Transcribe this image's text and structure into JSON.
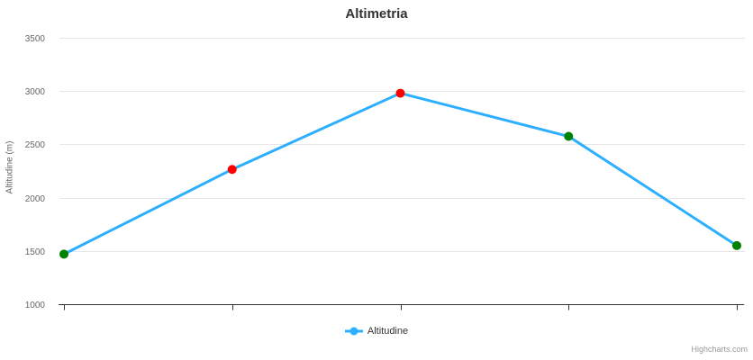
{
  "chart_data": {
    "type": "line",
    "title": "Altimetria",
    "xlabel": "",
    "ylabel": "Altitudine (m)",
    "ylim": [
      1000,
      3500
    ],
    "ytick_step": 500,
    "yticks": [
      1000,
      1500,
      2000,
      2500,
      3000,
      3500
    ],
    "grid": true,
    "legend_position": "bottom",
    "x_axis": {
      "labels": [],
      "ticks_at_points": true,
      "tick_count": 5
    },
    "series": [
      {
        "name": "Altitudine",
        "color": "#2caffe",
        "line_width": 3,
        "marker_radius": 5,
        "points": [
          {
            "value": 1470,
            "marker_color": "#008000"
          },
          {
            "value": 2265,
            "marker_color": "#ff0000"
          },
          {
            "value": 2980,
            "marker_color": "#ff0000"
          },
          {
            "value": 2575,
            "marker_color": "#008000"
          },
          {
            "value": 1550,
            "marker_color": "#008000"
          }
        ]
      }
    ]
  },
  "legend": {
    "items": [
      {
        "label": "Altitudine",
        "color": "#2caffe"
      }
    ]
  },
  "credits": {
    "label": "Highcharts.com"
  },
  "colors": {
    "background": "#ffffff",
    "series_line": "#2caffe",
    "marker_green": "#008000",
    "marker_red": "#ff0000",
    "grid": "#e6e6e6",
    "axis_line": "#333333",
    "title_text": "#333333",
    "axis_label_text": "#666666",
    "legend_text": "#333333",
    "credits_text": "#999999"
  }
}
